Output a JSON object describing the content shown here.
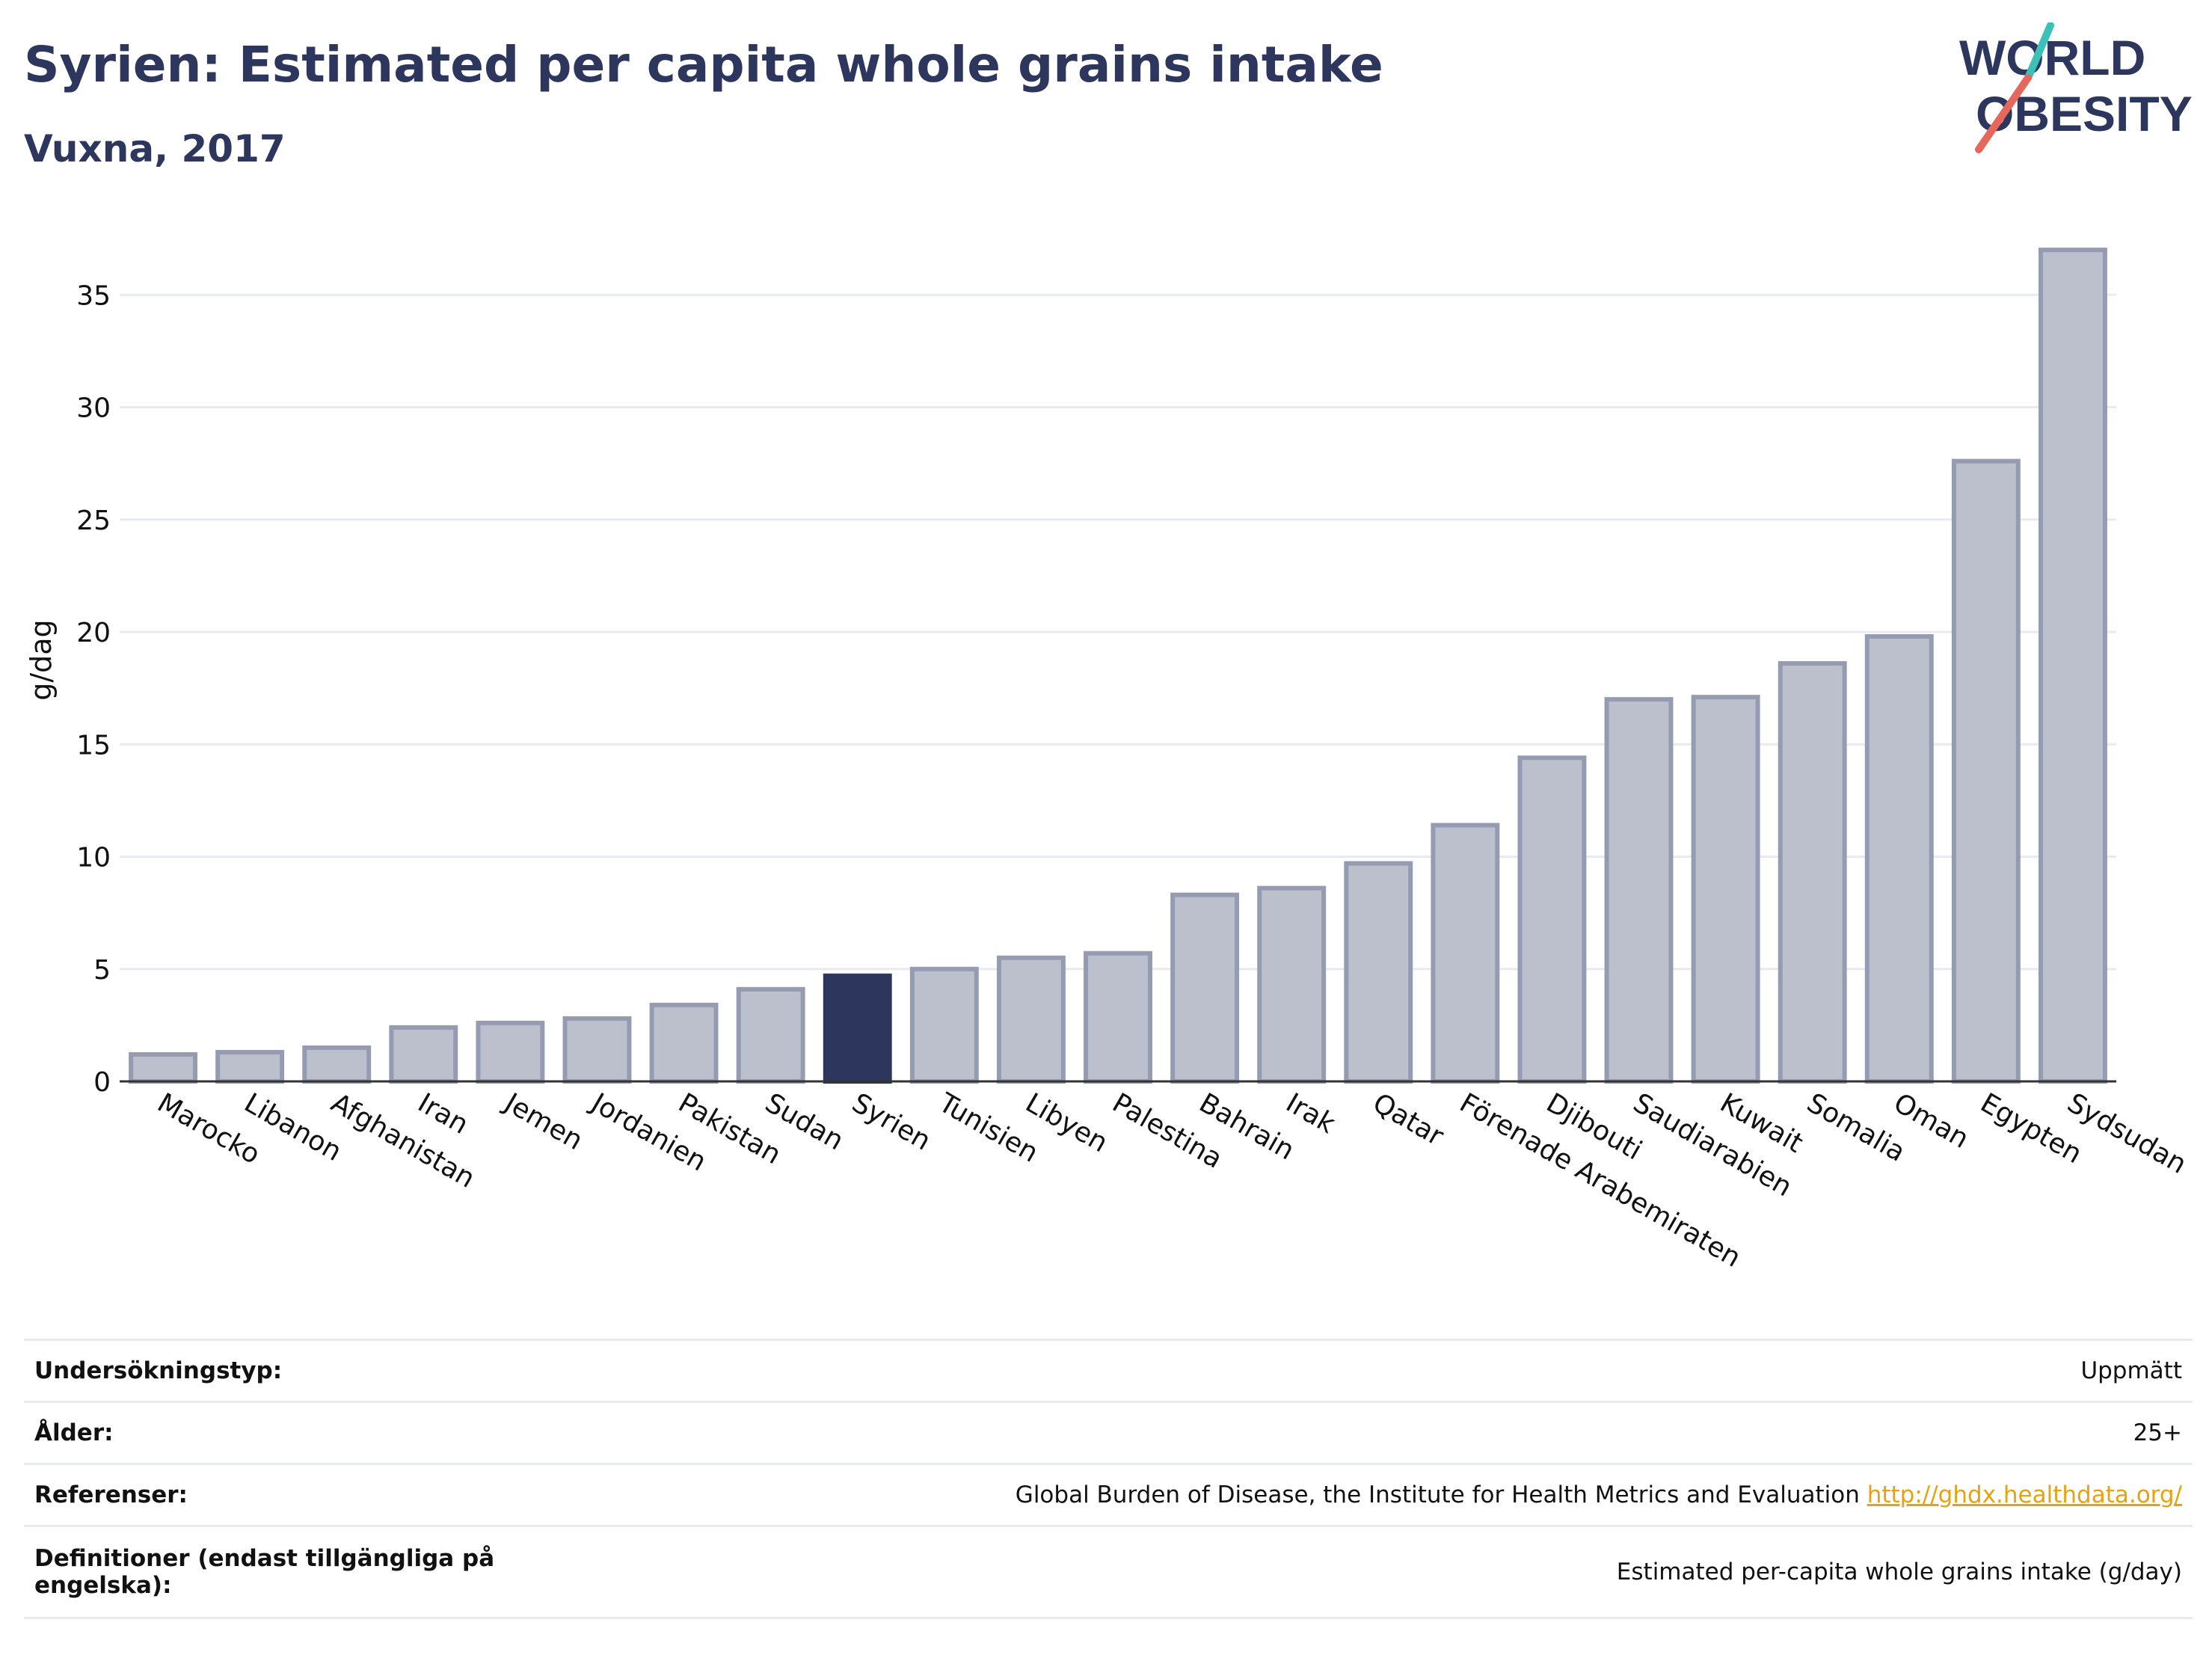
{
  "header": {
    "title": "Syrien: Estimated per capita whole grains intake",
    "subtitle": "Vuxna, 2017"
  },
  "logo": {
    "line1": "WORLD",
    "line2": "OBESITY",
    "accent1": "#3cc1b7",
    "accent2": "#e4695c"
  },
  "colors": {
    "highlight": "#2d365c",
    "bar_fill": "#bcc0cd",
    "bar_stroke": "#959bb1",
    "grid": "#e8eaf1"
  },
  "chart_data": {
    "type": "bar",
    "title": "Syrien: Estimated per capita whole grains intake",
    "subtitle": "Vuxna, 2017",
    "ylabel": "g/dag",
    "xlabel": "",
    "ylim": [
      0,
      37.5
    ],
    "yticks": [
      0,
      5,
      10,
      15,
      20,
      25,
      30,
      35
    ],
    "grid": true,
    "highlight": "Syrien",
    "categories": [
      "Marocko",
      "Libanon",
      "Afghanistan",
      "Iran",
      "Jemen",
      "Jordanien",
      "Pakistan",
      "Sudan",
      "Syrien",
      "Tunisien",
      "Libyen",
      "Palestina",
      "Bahrain",
      "Irak",
      "Qatar",
      "Förenade Arabemiraten",
      "Djibouti",
      "Saudiarabien",
      "Kuwait",
      "Somalia",
      "Oman",
      "Egypten",
      "Sydsudan"
    ],
    "values": [
      1.2,
      1.3,
      1.5,
      2.4,
      2.6,
      2.8,
      3.4,
      4.1,
      4.7,
      5.0,
      5.5,
      5.7,
      8.3,
      8.6,
      9.7,
      11.4,
      14.4,
      17.0,
      17.1,
      18.6,
      19.8,
      27.6,
      37.0
    ]
  },
  "info": {
    "rows": [
      {
        "label": "Undersökningstyp:",
        "value": "Uppmätt"
      },
      {
        "label": "Ålder:",
        "value": "25+"
      },
      {
        "label": "Referenser:",
        "value": "Global Burden of Disease, the Institute for Health Metrics and Evaluation",
        "link": "http://ghdx.healthdata.org/"
      },
      {
        "label": "Definitioner (endast tillgängliga på engelska):",
        "value": "Estimated per-capita whole grains intake (g/day)"
      }
    ]
  }
}
